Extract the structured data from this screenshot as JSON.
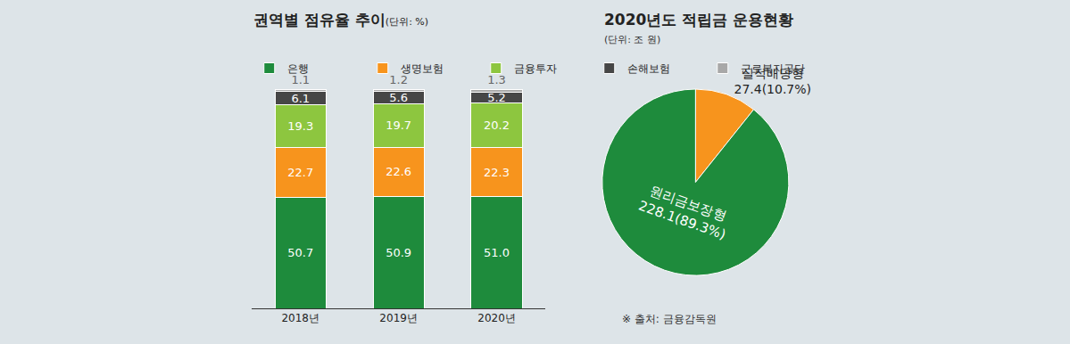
{
  "chart_data": [
    {
      "type": "bar",
      "title": "권역별 점유율 추이",
      "subtitle": "(단위: %)",
      "categories": [
        "2018년",
        "2019년",
        "2020년"
      ],
      "series": [
        {
          "name": "은행",
          "color": "#1e8b3c",
          "values": [
            50.7,
            50.9,
            51.0
          ],
          "value_labels": [
            "50.7",
            "50.9",
            "51.0"
          ]
        },
        {
          "name": "생명보험",
          "color": "#f7941d",
          "values": [
            22.7,
            22.6,
            22.3
          ]
        },
        {
          "name": "금융투자",
          "color": "#8dc63f",
          "values": [
            19.3,
            19.7,
            20.2
          ]
        },
        {
          "name": "손해보험",
          "color": "#464646",
          "values": [
            6.1,
            5.6,
            5.2
          ]
        },
        {
          "name": "근로복지공단",
          "color": "#a8a8a8",
          "values": [
            1.1,
            1.2,
            1.3
          ]
        }
      ],
      "ylim": [
        0,
        100
      ],
      "stacked": true,
      "data_labels": true,
      "tick_labels": "x",
      "grid": false,
      "legend": "top left"
    },
    {
      "type": "pie",
      "title": "2020년도 적립금 운용현황",
      "subtitle": "(단위: 조 원)",
      "categories": [
        "실적배당형",
        "원리금보장형"
      ],
      "values": [
        27.4,
        228.1
      ],
      "value_labels": [
        "27.4(10.7%)",
        "228.1(89.3%)"
      ],
      "colors": [
        "#f7941d",
        "#1e8b3c"
      ],
      "data_labels": true,
      "annotations": [
        "※ 출처: 금융감독원"
      ]
    }
  ]
}
